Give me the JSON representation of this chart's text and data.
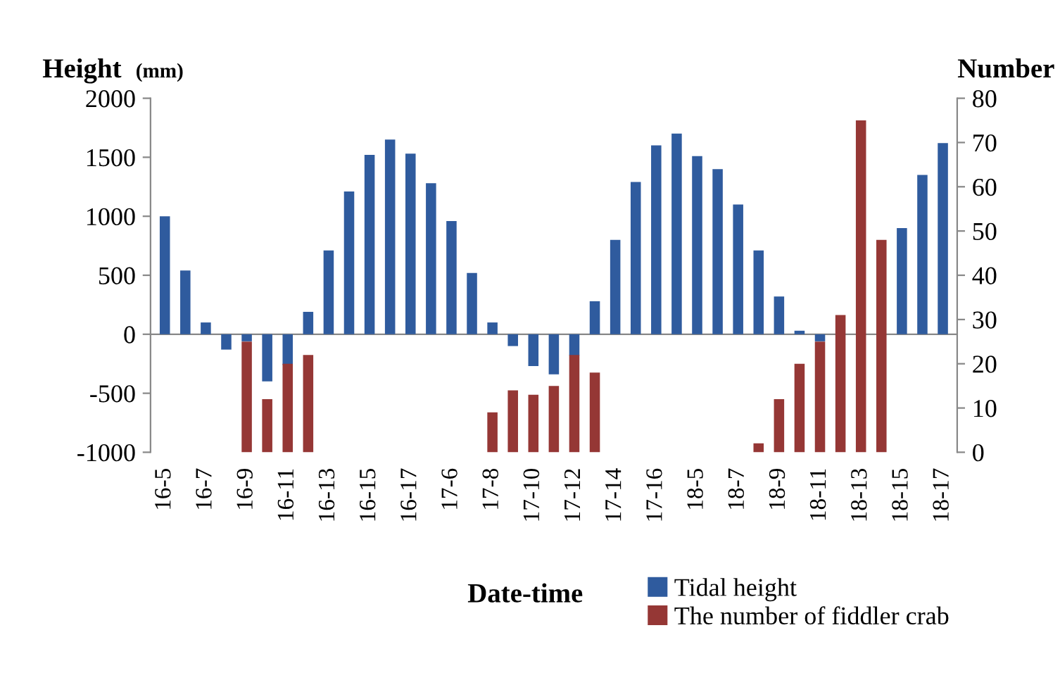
{
  "chart_data": {
    "type": "bar",
    "xlabel": "Date-time",
    "ylabel": "Height (mm)",
    "y2label": "Number",
    "categories": [
      "16-5",
      null,
      "16-7",
      null,
      "16-9",
      null,
      "16-11",
      null,
      "16-13",
      null,
      "16-15",
      null,
      "16-17",
      null,
      "17-6",
      null,
      "17-8",
      null,
      "17-10",
      null,
      "17-12",
      null,
      "17-14",
      null,
      "17-16",
      null,
      "18-5",
      null,
      "18-7",
      null,
      "18-9",
      null,
      "18-11",
      null,
      "18-13",
      null,
      "18-15",
      null,
      "18-17"
    ],
    "series": [
      {
        "name": "Tidal height",
        "color": "#2f5b9e",
        "values": [
          1000,
          540,
          100,
          -130,
          -60,
          -400,
          -260,
          190,
          710,
          1210,
          1520,
          1650,
          1530,
          1280,
          960,
          520,
          100,
          -100,
          -270,
          -340,
          -180,
          280,
          800,
          1290,
          1600,
          1700,
          1510,
          1400,
          1100,
          710,
          320,
          30,
          -60,
          null,
          null,
          null,
          900,
          1350,
          1620
        ]
      },
      {
        "name": "The number of fiddler crab",
        "color": "#953735",
        "axis": "y2",
        "values": [
          null,
          null,
          null,
          null,
          25,
          12,
          20,
          22,
          null,
          null,
          null,
          null,
          null,
          null,
          null,
          null,
          9,
          14,
          13,
          15,
          22,
          18,
          null,
          null,
          null,
          null,
          null,
          null,
          null,
          2,
          12,
          20,
          25,
          31,
          75,
          48,
          null,
          null,
          null
        ]
      }
    ],
    "ylim": [
      -1000,
      2000
    ],
    "yticks": [
      -1000,
      -500,
      0,
      500,
      1000,
      1500,
      2000
    ],
    "y2lim": [
      0,
      80
    ],
    "y2ticks": [
      0,
      10,
      20,
      30,
      40,
      50,
      60,
      70,
      80
    ],
    "legend": "bottom"
  }
}
